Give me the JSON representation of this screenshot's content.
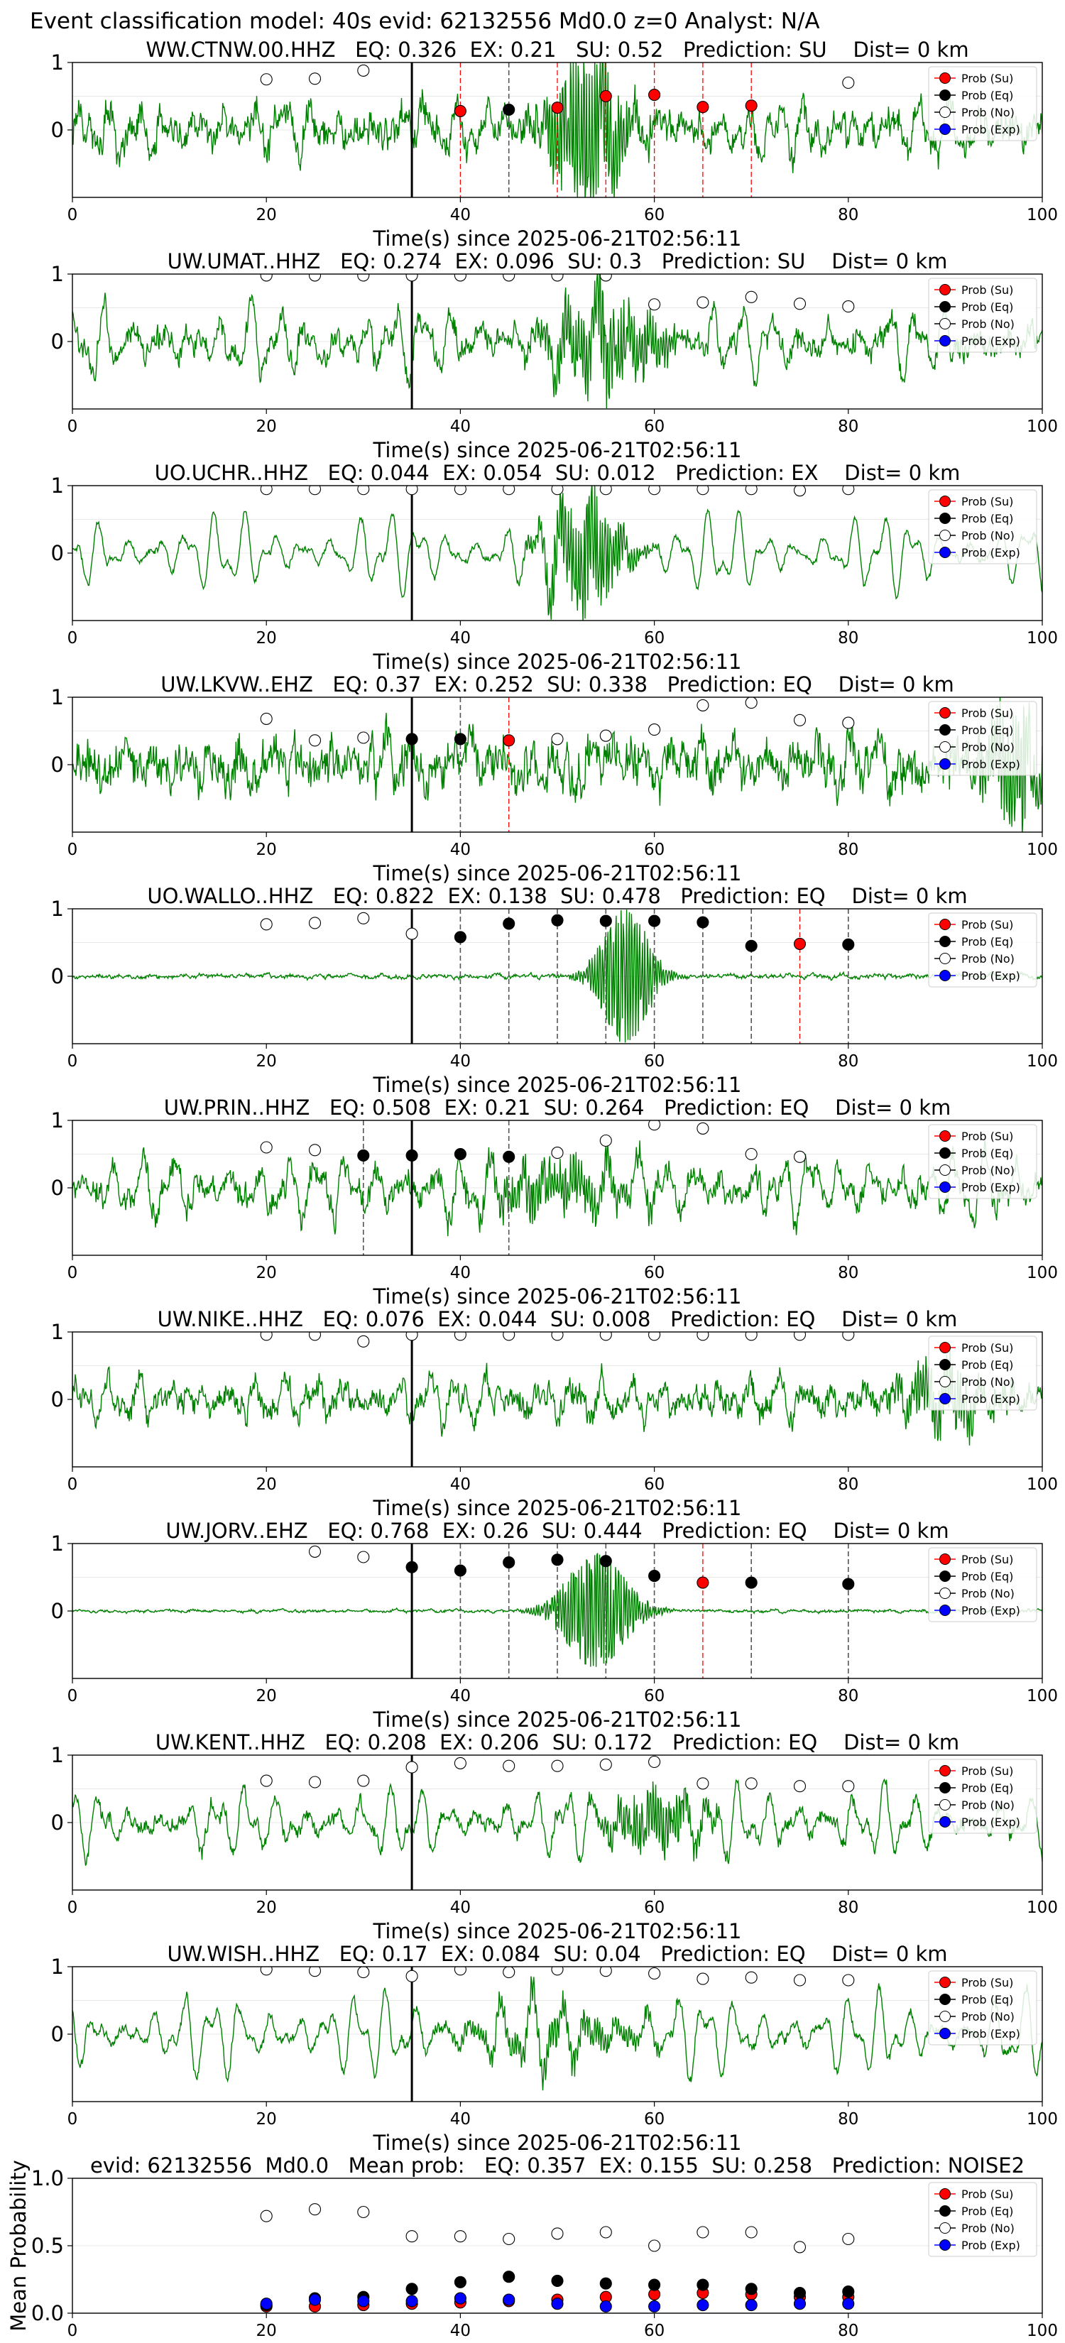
{
  "figure_title": "Event classification model: 40s evid: 62132556 Md0.0 z=0 Analyst: N/A",
  "legend_labels": [
    "Prob (Su)",
    "Prob (Eq)",
    "Prob (No)",
    "Prob (Exp)"
  ],
  "colors": {
    "su": "#ff0000",
    "eq": "#000000",
    "no": "#ffffff",
    "exp": "#0000ff",
    "waveform": "#008000",
    "su_line": "#ff0000",
    "eq_line": "#555555"
  },
  "chart_data": [
    {
      "type": "line",
      "title": "WW.CTNW.00.HHZ   EQ: 0.326  EX: 0.21   SU: 0.52   Prediction: SU    Dist= 0 km",
      "xlabel": "Time(s) since 2025-06-21T02:56:11",
      "xlim": [
        0,
        100
      ],
      "ylim": [
        -1,
        1
      ],
      "xticks": [
        "0",
        "20",
        "40",
        "60",
        "80",
        "100"
      ],
      "yticks": [
        "0",
        "1"
      ],
      "amp": 0.45,
      "noise": 0.25,
      "burst": {
        "center": 53,
        "width": 4,
        "gain": 0.55
      },
      "arrival": 35,
      "su_lines": [
        40,
        50,
        55,
        60,
        65,
        70
      ],
      "eq_lines": [
        45
      ],
      "su": [
        [
          40,
          0.28
        ],
        [
          50,
          0.33
        ],
        [
          55,
          0.5
        ],
        [
          60,
          0.52
        ],
        [
          65,
          0.34
        ],
        [
          70,
          0.36
        ]
      ],
      "eq": [
        [
          45,
          0.3
        ]
      ],
      "no": [
        [
          20,
          0.75
        ],
        [
          25,
          0.76
        ],
        [
          30,
          0.88
        ],
        [
          80,
          0.7
        ]
      ]
    },
    {
      "type": "line",
      "title": "UW.UMAT..HHZ   EQ: 0.274  EX: 0.096  SU: 0.3   Prediction: SU    Dist= 0 km",
      "xlabel": "Time(s) since 2025-06-21T02:56:11",
      "xlim": [
        0,
        100
      ],
      "ylim": [
        -1,
        1
      ],
      "xticks": [
        "0",
        "20",
        "40",
        "60",
        "80",
        "100"
      ],
      "yticks": [
        "0",
        "1"
      ],
      "amp": 0.6,
      "noise": 0.18,
      "burst": {
        "center": 55,
        "width": 6,
        "gain": 0.3
      },
      "arrival": 35,
      "su_lines": [],
      "eq_lines": [],
      "su": [],
      "eq": [],
      "no": [
        [
          20,
          0.98
        ],
        [
          25,
          0.98
        ],
        [
          30,
          0.98
        ],
        [
          35,
          0.98
        ],
        [
          40,
          0.98
        ],
        [
          45,
          0.98
        ],
        [
          50,
          0.98
        ],
        [
          55,
          0.98
        ],
        [
          60,
          0.55
        ],
        [
          65,
          0.58
        ],
        [
          70,
          0.66
        ],
        [
          75,
          0.56
        ],
        [
          80,
          0.52
        ]
      ]
    },
    {
      "type": "line",
      "title": "UO.UCHR..HHZ   EQ: 0.044  EX: 0.054  SU: 0.012   Prediction: EX    Dist= 0 km",
      "xlabel": "Time(s) since 2025-06-21T02:56:11",
      "xlim": [
        0,
        100
      ],
      "ylim": [
        -1,
        1
      ],
      "xticks": [
        "0",
        "20",
        "40",
        "60",
        "80",
        "100"
      ],
      "yticks": [
        "0",
        "1"
      ],
      "amp": 0.7,
      "noise": 0.05,
      "burst": {
        "center": 53,
        "width": 4,
        "gain": 0.4
      },
      "arrival": 35,
      "su_lines": [],
      "eq_lines": [],
      "su": [],
      "eq": [],
      "no": [
        [
          20,
          0.95
        ],
        [
          25,
          0.95
        ],
        [
          30,
          0.95
        ],
        [
          35,
          0.95
        ],
        [
          40,
          0.95
        ],
        [
          45,
          0.95
        ],
        [
          50,
          0.95
        ],
        [
          55,
          0.95
        ],
        [
          60,
          0.95
        ],
        [
          65,
          0.95
        ],
        [
          70,
          0.95
        ],
        [
          75,
          0.93
        ],
        [
          80,
          0.95
        ]
      ]
    },
    {
      "type": "line",
      "title": "UW.LKVW..EHZ   EQ: 0.37  EX: 0.252  SU: 0.338   Prediction: EQ    Dist= 0 km",
      "xlabel": "Time(s) since 2025-06-21T02:56:11",
      "xlim": [
        0,
        100
      ],
      "ylim": [
        -1,
        1
      ],
      "xticks": [
        "0",
        "20",
        "40",
        "60",
        "80",
        "100"
      ],
      "yticks": [
        "0",
        "1"
      ],
      "amp": 0.35,
      "noise": 0.35,
      "burst": {
        "center": 97,
        "width": 3,
        "gain": 0.4
      },
      "arrival": 35,
      "su_lines": [
        45
      ],
      "eq_lines": [
        35,
        40
      ],
      "su": [
        [
          45,
          0.36
        ]
      ],
      "eq": [
        [
          35,
          0.38
        ],
        [
          40,
          0.38
        ]
      ],
      "no": [
        [
          20,
          0.68
        ],
        [
          25,
          0.36
        ],
        [
          30,
          0.4
        ],
        [
          50,
          0.38
        ],
        [
          55,
          0.43
        ],
        [
          60,
          0.52
        ],
        [
          65,
          0.88
        ],
        [
          70,
          0.92
        ],
        [
          75,
          0.66
        ],
        [
          80,
          0.62
        ]
      ]
    },
    {
      "type": "line",
      "title": "UO.WALLO..HHZ   EQ: 0.822  EX: 0.138  SU: 0.478   Prediction: EQ    Dist= 0 km",
      "xlabel": "Time(s) since 2025-06-21T02:56:11",
      "xlim": [
        0,
        100
      ],
      "ylim": [
        -1,
        1
      ],
      "xticks": [
        "0",
        "20",
        "40",
        "60",
        "80",
        "100"
      ],
      "yticks": [
        "0",
        "1"
      ],
      "amp": 0.03,
      "noise": 0.03,
      "burst": {
        "center": 57,
        "width": 3,
        "gain": 0.5
      },
      "arrival": 35,
      "su_lines": [
        75
      ],
      "eq_lines": [
        40,
        45,
        50,
        55,
        60,
        65,
        70,
        80
      ],
      "su": [
        [
          75,
          0.48
        ]
      ],
      "eq": [
        [
          40,
          0.58
        ],
        [
          45,
          0.78
        ],
        [
          50,
          0.83
        ],
        [
          55,
          0.82
        ],
        [
          60,
          0.82
        ],
        [
          65,
          0.8
        ],
        [
          70,
          0.45
        ],
        [
          80,
          0.47
        ]
      ],
      "no": [
        [
          20,
          0.77
        ],
        [
          25,
          0.79
        ],
        [
          30,
          0.86
        ],
        [
          35,
          0.63
        ]
      ]
    },
    {
      "type": "line",
      "title": "UW.PRIN..HHZ   EQ: 0.508  EX: 0.21  SU: 0.264   Prediction: EQ    Dist= 0 km",
      "xlabel": "Time(s) since 2025-06-21T02:56:11",
      "xlim": [
        0,
        100
      ],
      "ylim": [
        -1,
        1
      ],
      "xticks": [
        "0",
        "20",
        "40",
        "60",
        "80",
        "100"
      ],
      "yticks": [
        "0",
        "1"
      ],
      "amp": 0.55,
      "noise": 0.2,
      "burst": {
        "center": 50,
        "width": 8,
        "gain": 0.15
      },
      "arrival": 35,
      "su_lines": [],
      "eq_lines": [
        30,
        45
      ],
      "su": [],
      "eq": [
        [
          30,
          0.48
        ],
        [
          35,
          0.48
        ],
        [
          40,
          0.5
        ],
        [
          45,
          0.46
        ]
      ],
      "no": [
        [
          20,
          0.6
        ],
        [
          25,
          0.56
        ],
        [
          50,
          0.52
        ],
        [
          55,
          0.7
        ],
        [
          60,
          0.94
        ],
        [
          65,
          0.88
        ],
        [
          70,
          0.5
        ],
        [
          75,
          0.46
        ]
      ]
    },
    {
      "type": "line",
      "title": "UW.NIKE..HHZ   EQ: 0.076  EX: 0.044  SU: 0.008   Prediction: EQ    Dist= 0 km",
      "xlabel": "Time(s) since 2025-06-21T02:56:11",
      "xlim": [
        0,
        100
      ],
      "ylim": [
        -1,
        1
      ],
      "xticks": [
        "0",
        "20",
        "40",
        "60",
        "80",
        "100"
      ],
      "yticks": [
        "0",
        "1"
      ],
      "amp": 0.4,
      "noise": 0.2,
      "burst": {
        "center": 90,
        "width": 5,
        "gain": 0.2
      },
      "arrival": 35,
      "su_lines": [],
      "eq_lines": [],
      "su": [],
      "eq": [],
      "no": [
        [
          20,
          0.96
        ],
        [
          25,
          0.96
        ],
        [
          30,
          0.86
        ],
        [
          35,
          0.96
        ],
        [
          40,
          0.96
        ],
        [
          45,
          0.96
        ],
        [
          50,
          0.96
        ],
        [
          55,
          0.96
        ],
        [
          60,
          0.96
        ],
        [
          65,
          0.96
        ],
        [
          70,
          0.96
        ],
        [
          75,
          0.96
        ],
        [
          80,
          0.96
        ]
      ]
    },
    {
      "type": "line",
      "title": "UW.JORV..EHZ   EQ: 0.768  EX: 0.26  SU: 0.444   Prediction: EQ    Dist= 0 km",
      "xlabel": "Time(s) since 2025-06-21T02:56:11",
      "xlim": [
        0,
        100
      ],
      "ylim": [
        -1,
        1
      ],
      "xticks": [
        "0",
        "20",
        "40",
        "60",
        "80",
        "100"
      ],
      "yticks": [
        "0",
        "1"
      ],
      "amp": 0.02,
      "noise": 0.02,
      "burst": {
        "center": 54,
        "width": 4,
        "gain": 0.42
      },
      "arrival": 35,
      "su_lines": [
        65
      ],
      "eq_lines": [
        40,
        45,
        50,
        55,
        60,
        70,
        80
      ],
      "su": [
        [
          65,
          0.42
        ]
      ],
      "eq": [
        [
          35,
          0.65
        ],
        [
          40,
          0.6
        ],
        [
          45,
          0.72
        ],
        [
          50,
          0.76
        ],
        [
          55,
          0.74
        ],
        [
          60,
          0.52
        ],
        [
          70,
          0.42
        ],
        [
          80,
          0.4
        ]
      ],
      "no": [
        [
          25,
          0.88
        ],
        [
          30,
          0.8
        ]
      ]
    },
    {
      "type": "line",
      "title": "UW.KENT..HHZ   EQ: 0.208  EX: 0.206  SU: 0.172   Prediction: EQ    Dist= 0 km",
      "xlabel": "Time(s) since 2025-06-21T02:56:11",
      "xlim": [
        0,
        100
      ],
      "ylim": [
        -1,
        1
      ],
      "xticks": [
        "0",
        "20",
        "40",
        "60",
        "80",
        "100"
      ],
      "yticks": [
        "0",
        "1"
      ],
      "amp": 0.6,
      "noise": 0.12,
      "burst": {
        "center": 60,
        "width": 5,
        "gain": 0.2
      },
      "arrival": 35,
      "su_lines": [],
      "eq_lines": [],
      "su": [],
      "eq": [],
      "no": [
        [
          20,
          0.62
        ],
        [
          25,
          0.6
        ],
        [
          30,
          0.62
        ],
        [
          35,
          0.82
        ],
        [
          40,
          0.88
        ],
        [
          45,
          0.84
        ],
        [
          50,
          0.84
        ],
        [
          55,
          0.86
        ],
        [
          60,
          0.9
        ],
        [
          65,
          0.58
        ],
        [
          70,
          0.58
        ],
        [
          75,
          0.54
        ],
        [
          80,
          0.54
        ]
      ]
    },
    {
      "type": "line",
      "title": "UW.WISH..HHZ   EQ: 0.17  EX: 0.084  SU: 0.04   Prediction: EQ    Dist= 0 km",
      "xlabel": "Time(s) since 2025-06-21T02:56:11",
      "xlim": [
        0,
        100
      ],
      "ylim": [
        -1,
        1
      ],
      "xticks": [
        "0",
        "20",
        "40",
        "60",
        "80",
        "100"
      ],
      "yticks": [
        "0",
        "1"
      ],
      "amp": 0.75,
      "noise": 0.08,
      "burst": {
        "center": 50,
        "width": 10,
        "gain": 0.1
      },
      "arrival": 35,
      "su_lines": [],
      "eq_lines": [],
      "su": [],
      "eq": [],
      "no": [
        [
          20,
          0.96
        ],
        [
          25,
          0.94
        ],
        [
          30,
          0.92
        ],
        [
          35,
          0.86
        ],
        [
          40,
          0.96
        ],
        [
          45,
          0.92
        ],
        [
          50,
          0.96
        ],
        [
          55,
          0.94
        ],
        [
          60,
          0.9
        ],
        [
          65,
          0.82
        ],
        [
          70,
          0.84
        ],
        [
          75,
          0.8
        ],
        [
          80,
          0.8
        ]
      ]
    },
    {
      "type": "scatter",
      "title": "evid: 62132556  Md0.0   Mean prob:   EQ: 0.357  EX: 0.155  SU: 0.258   Prediction: NOISE2",
      "xlabel": "",
      "ylabel": "Mean Probability",
      "xlim": [
        0,
        100
      ],
      "ylim": [
        0,
        1
      ],
      "xticks": [
        "0",
        "20",
        "40",
        "60",
        "80",
        "100"
      ],
      "yticks": [
        "0.0",
        "0.5",
        "1.0"
      ],
      "su": [
        [
          20,
          0.05
        ],
        [
          25,
          0.05
        ],
        [
          30,
          0.06
        ],
        [
          35,
          0.07
        ],
        [
          40,
          0.08
        ],
        [
          45,
          0.09
        ],
        [
          50,
          0.1
        ],
        [
          55,
          0.12
        ],
        [
          60,
          0.14
        ],
        [
          65,
          0.15
        ],
        [
          70,
          0.14
        ],
        [
          75,
          0.12
        ],
        [
          80,
          0.12
        ]
      ],
      "eq": [
        [
          20,
          0.06
        ],
        [
          25,
          0.11
        ],
        [
          30,
          0.12
        ],
        [
          35,
          0.18
        ],
        [
          40,
          0.23
        ],
        [
          45,
          0.27
        ],
        [
          50,
          0.24
        ],
        [
          55,
          0.22
        ],
        [
          60,
          0.21
        ],
        [
          65,
          0.21
        ],
        [
          70,
          0.18
        ],
        [
          75,
          0.15
        ],
        [
          80,
          0.16
        ]
      ],
      "no": [
        [
          20,
          0.72
        ],
        [
          25,
          0.77
        ],
        [
          30,
          0.75
        ],
        [
          35,
          0.57
        ],
        [
          40,
          0.57
        ],
        [
          45,
          0.55
        ],
        [
          50,
          0.59
        ],
        [
          55,
          0.6
        ],
        [
          60,
          0.5
        ],
        [
          65,
          0.6
        ],
        [
          70,
          0.6
        ],
        [
          75,
          0.49
        ],
        [
          80,
          0.55
        ]
      ],
      "exp": [
        [
          20,
          0.07
        ],
        [
          25,
          0.1
        ],
        [
          30,
          0.09
        ],
        [
          35,
          0.09
        ],
        [
          40,
          0.11
        ],
        [
          45,
          0.1
        ],
        [
          50,
          0.07
        ],
        [
          55,
          0.05
        ],
        [
          60,
          0.05
        ],
        [
          65,
          0.06
        ],
        [
          70,
          0.06
        ],
        [
          75,
          0.07
        ],
        [
          80,
          0.07
        ]
      ]
    }
  ]
}
